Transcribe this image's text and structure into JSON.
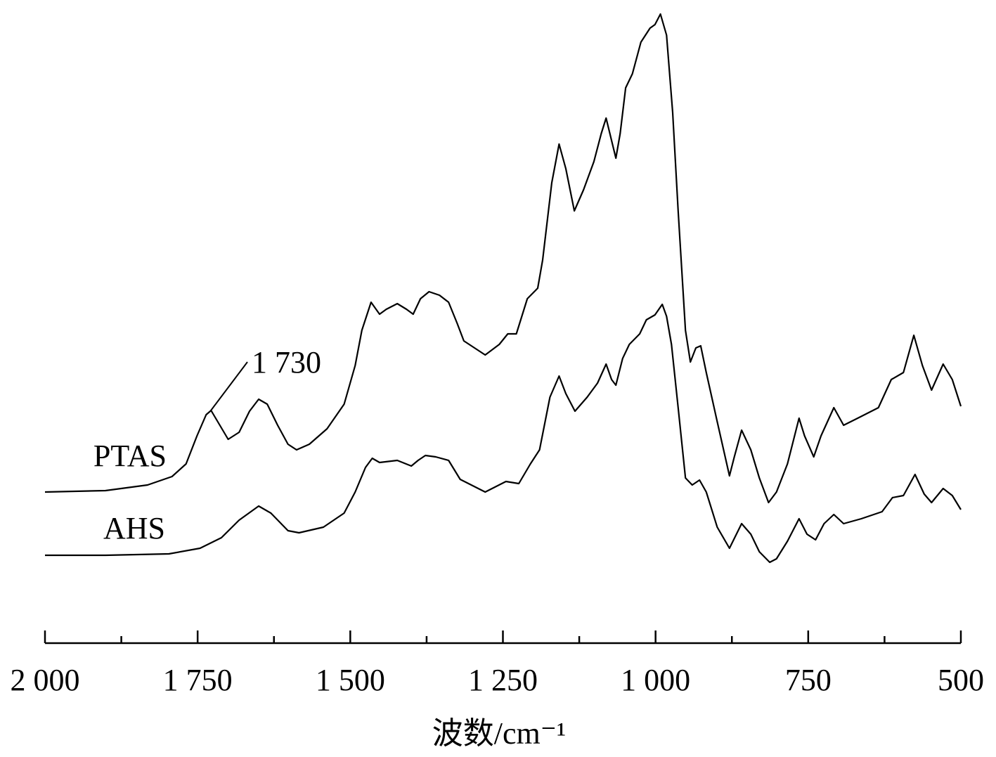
{
  "chart_data": {
    "type": "line",
    "x_label": "波数/cm⁻¹",
    "xlim": [
      2000,
      500
    ],
    "ylim": [
      0,
      900
    ],
    "xticks": [
      {
        "value": 2000,
        "label": "2 000"
      },
      {
        "value": 1750,
        "label": "1 750"
      },
      {
        "value": 1500,
        "label": "1 500"
      },
      {
        "value": 1250,
        "label": "1 250"
      },
      {
        "value": 1000,
        "label": "1 000"
      },
      750,
      500
    ],
    "xminor_ticks": [
      1875,
      1625,
      1375,
      1125,
      875,
      625
    ],
    "annotations": [
      {
        "text": "1 730"
      }
    ],
    "series": [
      {
        "name": "PTAS",
        "color": "#000000",
        "x": [
          2000,
          1901,
          1832,
          1792,
          1769,
          1751,
          1736,
          1728,
          1717,
          1700,
          1682,
          1665,
          1650,
          1636,
          1619,
          1602,
          1588,
          1567,
          1538,
          1510,
          1492,
          1481,
          1466,
          1452,
          1441,
          1423,
          1408,
          1397,
          1385,
          1371,
          1354,
          1339,
          1325,
          1314,
          1279,
          1256,
          1242,
          1228,
          1210,
          1193,
          1185,
          1170,
          1158,
          1147,
          1133,
          1118,
          1101,
          1089,
          1081,
          1072,
          1065,
          1058,
          1049,
          1038,
          1024,
          1009,
          1001,
          992,
          982,
          972,
          963,
          951,
          943,
          934,
          926,
          917,
          899,
          879,
          871,
          859,
          844,
          830,
          815,
          802,
          784,
          765,
          756,
          741,
          729,
          708,
          692,
          669,
          635,
          614,
          594,
          577,
          563,
          548,
          529,
          514,
          500
        ],
        "values": [
          215,
          217,
          225,
          237,
          255,
          295,
          325,
          331,
          315,
          290,
          300,
          330,
          347,
          340,
          310,
          283,
          275,
          283,
          305,
          340,
          395,
          445,
          485,
          468,
          475,
          483,
          475,
          468,
          490,
          500,
          495,
          485,
          455,
          430,
          410,
          425,
          440,
          440,
          490,
          505,
          545,
          655,
          710,
          675,
          615,
          645,
          685,
          725,
          747,
          715,
          690,
          725,
          790,
          810,
          855,
          875,
          880,
          895,
          865,
          755,
          615,
          445,
          400,
          420,
          423,
          385,
          315,
          238,
          265,
          303,
          275,
          235,
          200,
          215,
          255,
          320,
          295,
          265,
          295,
          335,
          310,
          320,
          335,
          375,
          385,
          438,
          395,
          360,
          397,
          375,
          337
        ]
      },
      {
        "name": "AHS",
        "color": "#000000",
        "x": [
          2000,
          1901,
          1797,
          1746,
          1711,
          1682,
          1650,
          1630,
          1602,
          1584,
          1544,
          1510,
          1492,
          1475,
          1464,
          1452,
          1423,
          1400,
          1389,
          1377,
          1360,
          1339,
          1320,
          1279,
          1245,
          1224,
          1205,
          1190,
          1173,
          1158,
          1147,
          1132,
          1112,
          1095,
          1081,
          1072,
          1065,
          1054,
          1043,
          1026,
          1015,
          1001,
          989,
          982,
          974,
          963,
          951,
          940,
          928,
          917,
          899,
          879,
          859,
          844,
          830,
          813,
          802,
          784,
          765,
          752,
          738,
          724,
          708,
          692,
          663,
          629,
          612,
          594,
          575,
          560,
          548,
          529,
          514,
          500
        ],
        "values": [
          125,
          125,
          127,
          135,
          150,
          175,
          195,
          185,
          160,
          157,
          165,
          185,
          215,
          250,
          263,
          257,
          260,
          252,
          260,
          267,
          265,
          260,
          233,
          215,
          230,
          227,
          255,
          275,
          350,
          380,
          355,
          330,
          350,
          370,
          397,
          375,
          367,
          405,
          425,
          440,
          460,
          467,
          482,
          465,
          425,
          335,
          235,
          225,
          232,
          215,
          165,
          135,
          170,
          155,
          130,
          115,
          120,
          145,
          177,
          155,
          147,
          170,
          183,
          170,
          177,
          187,
          207,
          210,
          240,
          212,
          200,
          220,
          210,
          190
        ]
      }
    ]
  }
}
